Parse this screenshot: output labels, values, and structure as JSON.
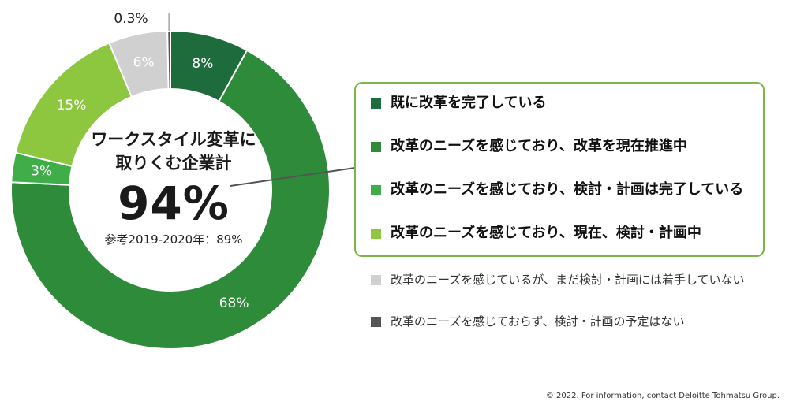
{
  "chart_data": {
    "type": "pie",
    "donut": true,
    "center": {
      "title_line1": "ワークスタイル変革に",
      "title_line2": "取りくむ企業計",
      "value": "94%",
      "reference": "参考2019-2020年：89%"
    },
    "slices": [
      {
        "label": "既に改革を完了している",
        "value": 8,
        "display": "8%",
        "color": "#1e6b3c",
        "highlight": true
      },
      {
        "label": "改革のニーズを感じており、改革を現在推進中",
        "value": 68,
        "display": "68%",
        "color": "#2e8b3a",
        "highlight": true
      },
      {
        "label": "改革のニーズを感じており、検討・計画は完了している",
        "value": 3,
        "display": "3%",
        "color": "#3fae49",
        "highlight": true
      },
      {
        "label": "改革のニーズを感じており、現在、検討・計画中",
        "value": 15,
        "display": "15%",
        "color": "#8dc63f",
        "highlight": true
      },
      {
        "label": "改革のニーズを感じているが、まだ検討・計画には着手していない",
        "value": 6,
        "display": "6%",
        "color": "#d0d0d0",
        "highlight": false
      },
      {
        "label": "改革のニーズを感じておらず、検討・計画の予定はない",
        "value": 0.3,
        "display": "0.3%",
        "color": "#555555",
        "highlight": false
      }
    ]
  },
  "footer": "© 2022. For information, contact Deloitte Tohmatsu Group."
}
